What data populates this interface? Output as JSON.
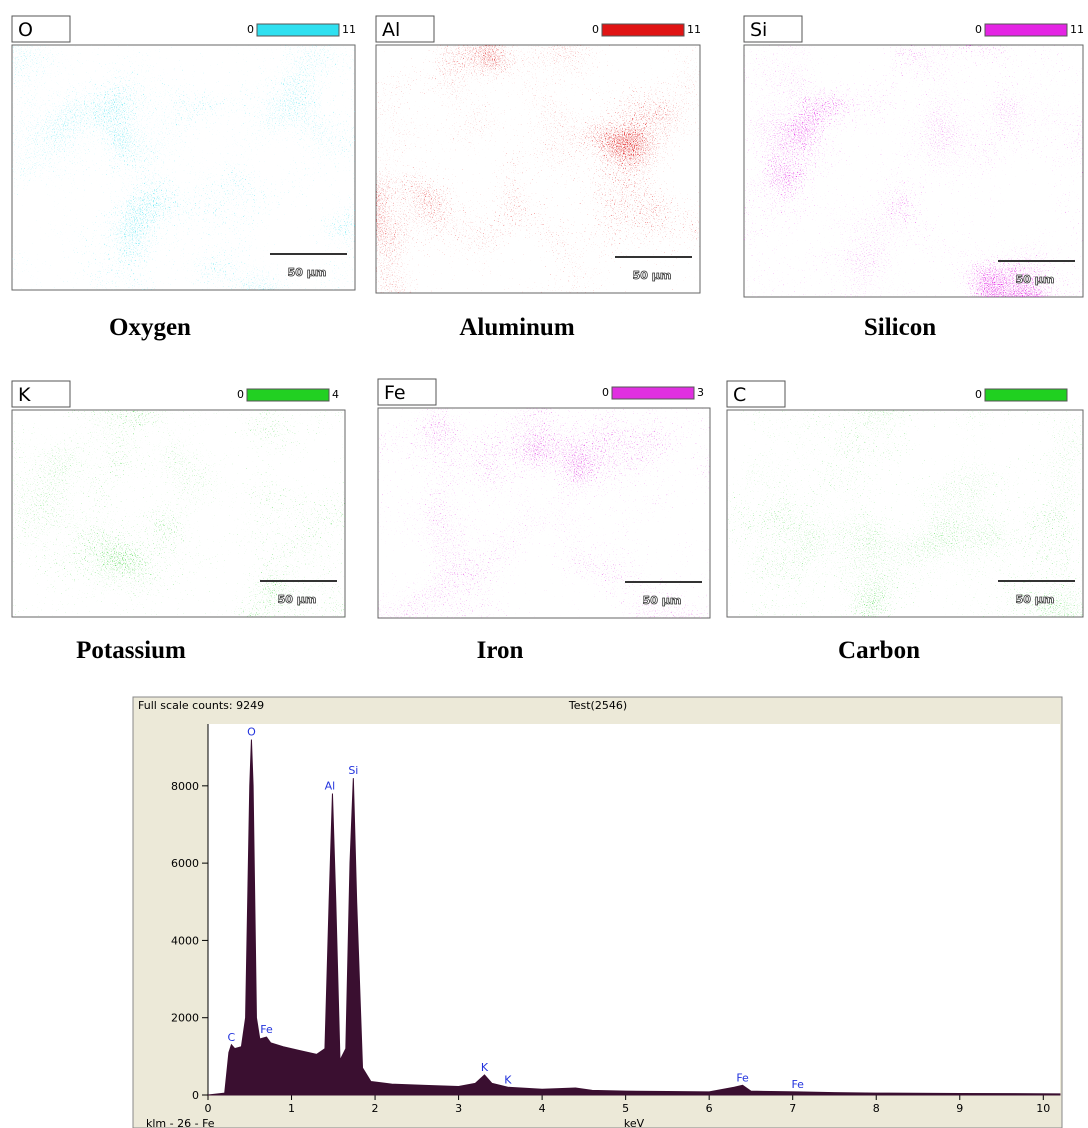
{
  "maps": [
    {
      "element": "O",
      "scale_min": 0,
      "scale_max": 11,
      "color": "#2fe0f0",
      "scale_bar": "50 µm",
      "caption": "Oxygen"
    },
    {
      "element": "Al",
      "scale_min": 0,
      "scale_max": 11,
      "color": "#e01414",
      "scale_bar": "50 µm",
      "caption": "Aluminum"
    },
    {
      "element": "Si",
      "scale_min": 0,
      "scale_max": 11,
      "color": "#e424e4",
      "scale_bar": "50 µm",
      "caption": "Silicon"
    },
    {
      "element": "K",
      "scale_min": 0,
      "scale_max": 4,
      "color": "#22d022",
      "scale_bar": "50 µm",
      "caption": "Potassium"
    },
    {
      "element": "Fe",
      "scale_min": 0,
      "scale_max": 3,
      "color": "#e030e0",
      "scale_bar": "50 µm",
      "caption": "Iron"
    },
    {
      "element": "C",
      "scale_min": 0,
      "color": "#20d020",
      "scale_bar": "50 µm",
      "caption": "Carbon"
    }
  ],
  "chart_data": {
    "type": "area",
    "title": "Full scale counts: 9249",
    "subtitle": "Test(2546)",
    "x_label": "keV",
    "footer": "klm - 26 - Fe",
    "color": "#3a0f30",
    "x": [
      0,
      0.2,
      0.25,
      0.28,
      0.32,
      0.4,
      0.45,
      0.5,
      0.52,
      0.54,
      0.58,
      0.62,
      0.7,
      0.75,
      0.9,
      1.1,
      1.3,
      1.4,
      1.45,
      1.49,
      1.53,
      1.58,
      1.65,
      1.7,
      1.74,
      1.78,
      1.85,
      1.95,
      2.2,
      2.6,
      3.0,
      3.2,
      3.31,
      3.4,
      3.59,
      4.0,
      4.4,
      4.6,
      5.0,
      5.5,
      6.0,
      6.3,
      6.4,
      6.5,
      7.06,
      7.5,
      8.0,
      9.0,
      10.2
    ],
    "values": [
      0,
      50,
      1100,
      1300,
      1200,
      1250,
      2000,
      8000,
      9200,
      8000,
      2000,
      1450,
      1500,
      1350,
      1250,
      1150,
      1050,
      1200,
      5000,
      7800,
      5000,
      900,
      1200,
      6000,
      8200,
      5000,
      700,
      350,
      280,
      250,
      220,
      300,
      520,
      300,
      200,
      150,
      180,
      120,
      100,
      90,
      80,
      200,
      250,
      100,
      80,
      60,
      50,
      40,
      30
    ],
    "xlim": [
      0,
      10.2
    ],
    "ylim": [
      0,
      9600
    ],
    "xticks": [
      0,
      1,
      2,
      3,
      4,
      5,
      6,
      7,
      8,
      9,
      10
    ],
    "yticks": [
      0,
      2000,
      4000,
      6000,
      8000
    ],
    "annotations": [
      {
        "text": "C",
        "x": 0.28,
        "y": 1300
      },
      {
        "text": "O",
        "x": 0.52,
        "y": 9200
      },
      {
        "text": "Fe",
        "x": 0.7,
        "y": 1500
      },
      {
        "text": "Al",
        "x": 1.46,
        "y": 7800
      },
      {
        "text": "Si",
        "x": 1.74,
        "y": 8200
      },
      {
        "text": "K",
        "x": 3.31,
        "y": 520
      },
      {
        "text": "K",
        "x": 3.59,
        "y": 200
      },
      {
        "text": "Fe",
        "x": 6.4,
        "y": 250
      },
      {
        "text": "Fe",
        "x": 7.06,
        "y": 80
      }
    ],
    "annotation_color": "#2233dd"
  }
}
